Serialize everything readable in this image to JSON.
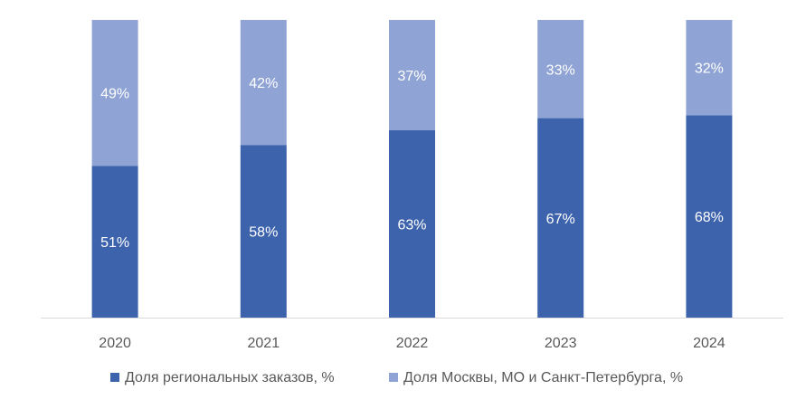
{
  "chart_data": {
    "type": "bar",
    "stacked": true,
    "categories": [
      "2020",
      "2021",
      "2022",
      "2023",
      "2024"
    ],
    "series": [
      {
        "name": "Доля региональных заказов, %",
        "values": [
          51,
          58,
          63,
          67,
          68
        ],
        "labels": [
          "51%",
          "58%",
          "63%",
          "67%",
          "68%"
        ],
        "color": "#3d63ad"
      },
      {
        "name": "Доля Москвы, МО и Санкт-Петербурга, %",
        "values": [
          49,
          42,
          37,
          33,
          32
        ],
        "labels": [
          "49%",
          "42%",
          "37%",
          "33%",
          "32%"
        ],
        "color": "#8fa3d4"
      }
    ],
    "ylim": [
      0,
      100
    ],
    "grid": false,
    "legend_position": "bottom",
    "axis_color": "#d9d9d9",
    "text_color": "#595959"
  }
}
